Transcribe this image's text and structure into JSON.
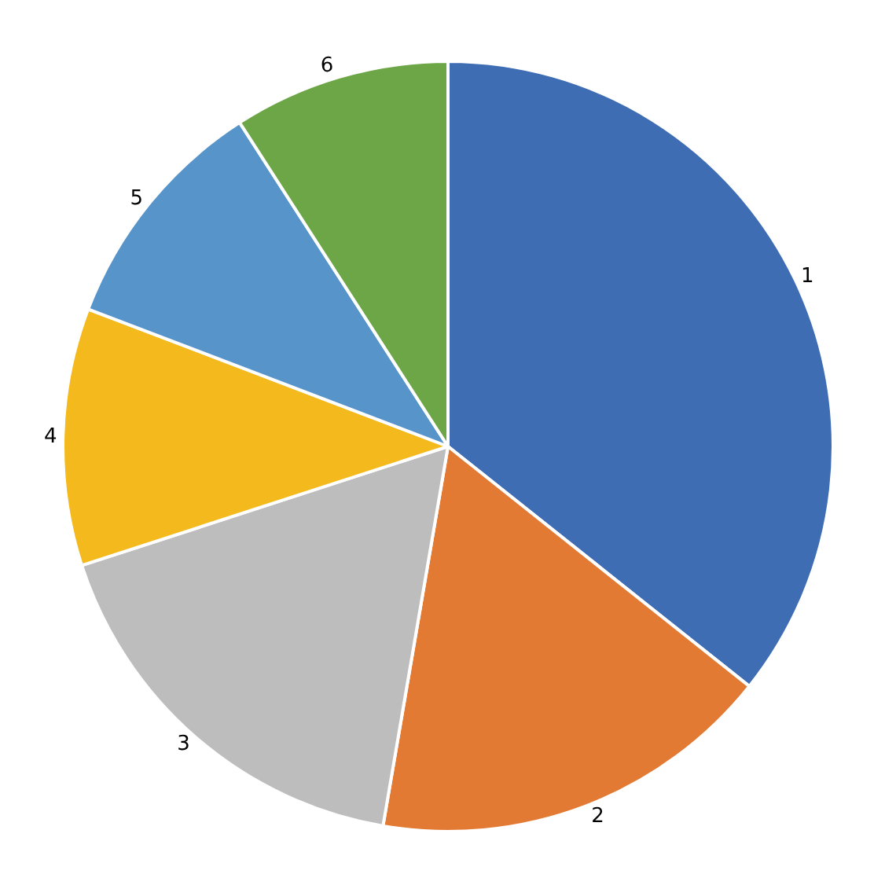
{
  "chart_data": {
    "type": "pie",
    "categories": [
      "1",
      "2",
      "3",
      "4",
      "5",
      "6"
    ],
    "values": [
      35.7,
      17.0,
      17.3,
      10.8,
      10.1,
      9.1
    ],
    "colors": [
      "#3f6db4",
      "#e27a33",
      "#bdbdbd",
      "#f4b91d",
      "#5694ca",
      "#6ca646"
    ]
  }
}
